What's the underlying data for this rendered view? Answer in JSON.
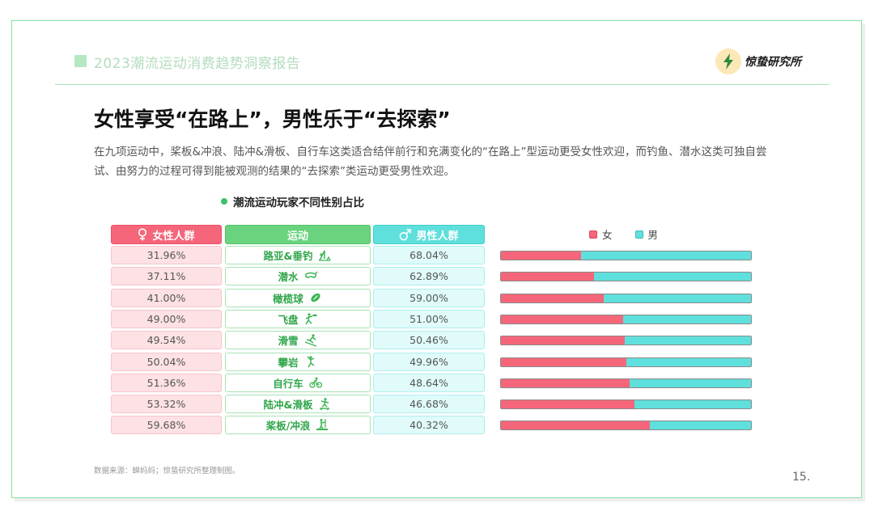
{
  "header": {
    "report_title": "2023潮流运动消费趋势洞察报告",
    "logo_text": "惊蛰研究所"
  },
  "main_title": "女性享受“在路上”，男性乐于“去探索”",
  "description": "在九项运动中，桨板&冲浪、陆冲&滑板、自行车这类适合结伴前行和充满变化的“在路上”型运动更受女性欢迎，而钓鱼、潜水这类可独自尝试、由努力的过程可得到能被观测的结果的“去探索”类运动更受男性欢迎。",
  "chart_subtitle": "潮流运动玩家不同性别占比",
  "table": {
    "female_header": "女性人群",
    "sport_header": "运动",
    "male_header": "男性人群"
  },
  "legend": {
    "female": "女",
    "male": "男"
  },
  "colors": {
    "female": "#f5667a",
    "male": "#5fe0dc",
    "accent": "#69d37d"
  },
  "chart_data": {
    "type": "bar",
    "stacked": true,
    "orientation": "horizontal",
    "title": "潮流运动玩家不同性别占比",
    "categories": [
      "路亚&垂钓",
      "潜水",
      "橄榄球",
      "飞盘",
      "滑雪",
      "攀岩",
      "自行车",
      "陆冲&滑板",
      "桨板/冲浪"
    ],
    "icons": [
      "fishing-icon",
      "diving-mask-icon",
      "rugby-ball-icon",
      "frisbee-icon",
      "skiing-icon",
      "climbing-icon",
      "bicycle-icon",
      "skateboard-icon",
      "paddleboard-icon"
    ],
    "series": [
      {
        "name": "女",
        "values": [
          31.96,
          37.11,
          41.0,
          49.0,
          49.54,
          50.04,
          51.36,
          53.32,
          59.68
        ],
        "labels": [
          "31.96%",
          "37.11%",
          "41.00%",
          "49.00%",
          "49.54%",
          "50.04%",
          "51.36%",
          "53.32%",
          "59.68%"
        ]
      },
      {
        "name": "男",
        "values": [
          68.04,
          62.89,
          59.0,
          51.0,
          50.46,
          49.96,
          48.64,
          46.68,
          40.32
        ],
        "labels": [
          "68.04%",
          "62.89%",
          "59.00%",
          "51.00%",
          "50.46%",
          "49.96%",
          "48.64%",
          "46.68%",
          "40.32%"
        ]
      }
    ],
    "xlim": [
      0,
      100
    ],
    "legend_position": "top"
  },
  "source": "数据来源：蝉妈妈；惊蛰研究所整理制图。",
  "page_number": "15."
}
